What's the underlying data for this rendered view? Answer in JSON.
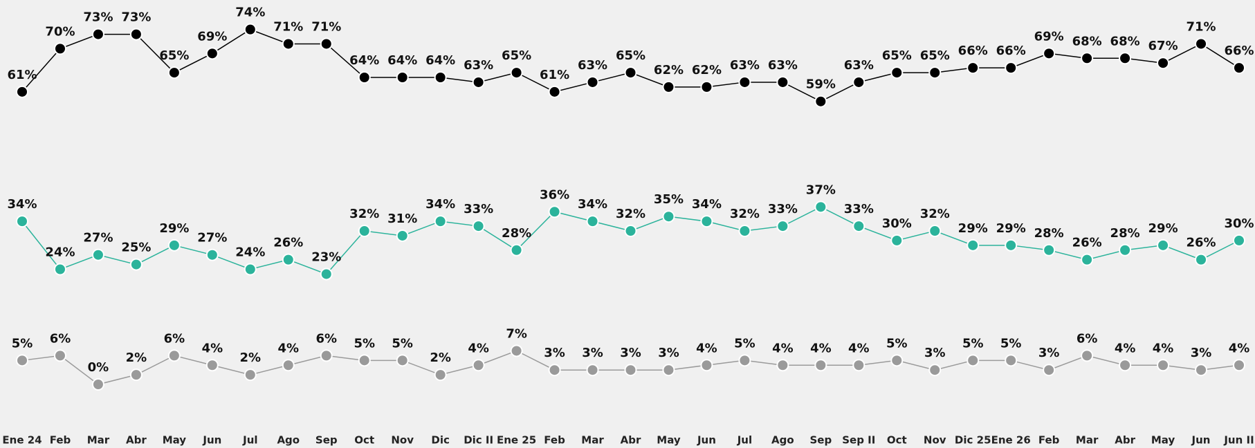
{
  "chart_data": {
    "type": "line",
    "categories": [
      "Ene 24",
      "Feb",
      "Mar",
      "Abr",
      "May",
      "Jun",
      "Jul",
      "Ago",
      "Sep",
      "Oct",
      "Nov",
      "Dic",
      "Dic II",
      "Ene 25",
      "Feb",
      "Mar",
      "Abr",
      "May",
      "Jun",
      "Jul",
      "Ago",
      "Sep",
      "Sep II",
      "Oct",
      "Nov",
      "Dic 25",
      "Ene 26",
      "Feb",
      "Mar",
      "Abr",
      "May",
      "Jun",
      "Jun II"
    ],
    "ylim": [
      0,
      80
    ],
    "series": [
      {
        "color": "#000000",
        "values": [
          61,
          70,
          73,
          73,
          65,
          69,
          74,
          71,
          71,
          64,
          64,
          64,
          63,
          65,
          61,
          63,
          65,
          62,
          62,
          63,
          63,
          59,
          63,
          65,
          65,
          66,
          66,
          69,
          68,
          68,
          67,
          71,
          66
        ],
        "value_labels": [
          "61%",
          "70%",
          "73%",
          "73%",
          "65%",
          "69%",
          "74%",
          "71%",
          "71%",
          "64%",
          "64%",
          "64%",
          "63%",
          "65%",
          "61%",
          "63%",
          "65%",
          "62%",
          "62%",
          "63%",
          "63%",
          "59%",
          "63%",
          "65%",
          "65%",
          "66%",
          "66%",
          "69%",
          "68%",
          "68%",
          "67%",
          "71%",
          "66%"
        ]
      },
      {
        "color": "#2bb39b",
        "values": [
          34,
          24,
          27,
          25,
          29,
          27,
          24,
          26,
          23,
          32,
          31,
          34,
          33,
          28,
          36,
          34,
          32,
          35,
          34,
          32,
          33,
          37,
          33,
          30,
          32,
          29,
          29,
          28,
          26,
          28,
          29,
          26,
          30
        ],
        "value_labels": [
          "34%",
          "24%",
          "27%",
          "25%",
          "29%",
          "27%",
          "24%",
          "26%",
          "23%",
          "32%",
          "31%",
          "34%",
          "33%",
          "28%",
          "36%",
          "34%",
          "32%",
          "35%",
          "34%",
          "32%",
          "33%",
          "37%",
          "33%",
          "30%",
          "32%",
          "29%",
          "29%",
          "28%",
          "26%",
          "28%",
          "29%",
          "26%",
          "30%"
        ]
      },
      {
        "color": "#9a9a9a",
        "values": [
          5,
          6,
          0,
          2,
          6,
          4,
          2,
          4,
          6,
          5,
          5,
          2,
          4,
          7,
          3,
          3,
          3,
          3,
          4,
          5,
          4,
          4,
          4,
          5,
          3,
          5,
          5,
          3,
          6,
          4,
          4,
          3,
          4
        ],
        "value_labels": [
          "5%",
          "6%",
          "0%",
          "2%",
          "6%",
          "4%",
          "2%",
          "4%",
          "6%",
          "5%",
          "5%",
          "2%",
          "4%",
          "7%",
          "3%",
          "3%",
          "3%",
          "3%",
          "4%",
          "5%",
          "4%",
          "4%",
          "4%",
          "5%",
          "3%",
          "5%",
          "5%",
          "3%",
          "6%",
          "4%",
          "4%",
          "3%",
          "4%"
        ]
      }
    ]
  }
}
